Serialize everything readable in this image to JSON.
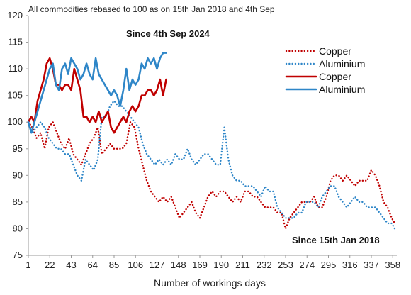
{
  "chart_data": {
    "type": "line",
    "subtitle": "All commodities rebased to 100 as on 15th Jan 2018 and 4th Sep",
    "xlabel": "Number of workings days",
    "ylabel": "",
    "ylim": [
      75,
      120
    ],
    "yticks": [
      75,
      80,
      85,
      90,
      95,
      100,
      105,
      110,
      115,
      120
    ],
    "xlim": [
      1,
      362
    ],
    "xticks": [
      1,
      22,
      43,
      64,
      85,
      106,
      127,
      148,
      169,
      190,
      211,
      232,
      253,
      274,
      295,
      316,
      337,
      358
    ],
    "grid": false,
    "legend_position": "top-right",
    "annotations": [
      {
        "text": "Since 4th Sep 2024",
        "x": 130,
        "y": 116
      },
      {
        "text": "Since 15th Jan 2018",
        "x": 316,
        "y": 78.5
      }
    ],
    "series": [
      {
        "name": "Copper",
        "period": "Since 15th Jan 2018",
        "color": "#c00000",
        "style": "dotted",
        "x": [
          1,
          5,
          9,
          13,
          17,
          21,
          25,
          29,
          33,
          37,
          41,
          45,
          49,
          53,
          57,
          61,
          65,
          69,
          73,
          77,
          81,
          85,
          89,
          93,
          97,
          101,
          105,
          109,
          113,
          117,
          121,
          125,
          129,
          133,
          137,
          141,
          145,
          149,
          153,
          157,
          161,
          165,
          169,
          173,
          177,
          181,
          185,
          189,
          193,
          197,
          201,
          205,
          209,
          213,
          217,
          221,
          225,
          229,
          233,
          237,
          241,
          245,
          249,
          253,
          257,
          261,
          265,
          269,
          273,
          277,
          281,
          285,
          289,
          293,
          297,
          301,
          305,
          309,
          313,
          317,
          321,
          325,
          329,
          333,
          337,
          341,
          345,
          349,
          353,
          357,
          360
        ],
        "values": [
          100,
          99,
          97,
          98,
          95,
          99,
          100,
          98,
          96,
          95,
          97,
          94,
          93,
          92,
          94,
          96,
          97,
          99,
          94,
          95,
          96,
          95,
          95,
          95,
          96,
          100,
          99,
          95,
          92,
          89,
          87,
          86,
          85,
          86,
          85,
          86,
          84,
          82,
          83,
          84,
          85,
          83,
          82,
          84,
          86,
          87,
          86,
          87,
          87,
          86,
          85,
          86,
          85,
          87,
          87,
          86,
          86,
          85,
          84,
          84,
          84,
          83,
          83,
          80,
          82,
          83,
          84,
          85,
          85,
          85,
          86,
          84,
          84,
          86,
          89,
          90,
          90,
          89,
          90,
          89,
          88,
          89,
          89,
          89,
          91,
          90,
          88,
          85,
          84,
          82,
          81
        ]
      },
      {
        "name": "Aluminium",
        "period": "Since 15th Jan 2018",
        "color": "#2e86c8",
        "style": "dotted",
        "x": [
          1,
          5,
          9,
          13,
          17,
          21,
          25,
          29,
          33,
          37,
          41,
          45,
          49,
          53,
          57,
          61,
          65,
          69,
          73,
          77,
          81,
          85,
          89,
          93,
          97,
          101,
          105,
          109,
          113,
          117,
          121,
          125,
          129,
          133,
          137,
          141,
          145,
          149,
          153,
          157,
          161,
          165,
          169,
          173,
          177,
          181,
          185,
          189,
          193,
          197,
          201,
          205,
          209,
          213,
          217,
          221,
          225,
          229,
          233,
          237,
          241,
          245,
          249,
          253,
          257,
          261,
          265,
          269,
          273,
          277,
          281,
          285,
          289,
          293,
          297,
          301,
          305,
          309,
          313,
          317,
          321,
          325,
          329,
          333,
          337,
          341,
          345,
          349,
          353,
          357,
          360
        ],
        "values": [
          100,
          98,
          99,
          100,
          99,
          97,
          96,
          95,
          95,
          94,
          94,
          92,
          90,
          89,
          93,
          92,
          91,
          93,
          101,
          101,
          103,
          104,
          103,
          103,
          102,
          101,
          100,
          99,
          96,
          94,
          93,
          92,
          93,
          92,
          93,
          92,
          94,
          93,
          93,
          95,
          93,
          92,
          93,
          94,
          94,
          93,
          92,
          92,
          99,
          93,
          90,
          89,
          89,
          88,
          88,
          88,
          87,
          86,
          88,
          87,
          87,
          84,
          83,
          82,
          82,
          82,
          83,
          83,
          85,
          85,
          85,
          84,
          86,
          87,
          88,
          88,
          86,
          85,
          84,
          85,
          86,
          85,
          85,
          84,
          84,
          84,
          83,
          82,
          81,
          81,
          80
        ]
      },
      {
        "name": "Copper",
        "period": "Since 4th Sep 2024",
        "color": "#c00000",
        "style": "solid",
        "x": [
          1,
          4,
          7,
          10,
          13,
          16,
          19,
          22,
          25,
          28,
          31,
          34,
          37,
          40,
          43,
          46,
          49,
          52,
          55,
          58,
          61,
          64,
          67,
          70,
          73,
          76,
          79,
          82,
          85,
          88,
          91,
          94,
          97,
          100,
          103,
          106,
          109,
          112,
          115,
          118,
          121,
          124,
          127,
          130,
          133,
          136
        ],
        "values": [
          100,
          101,
          100,
          104,
          106,
          108,
          111,
          112,
          110,
          107,
          107,
          106,
          107,
          107,
          106,
          110,
          108,
          106,
          101,
          101,
          100,
          101,
          100,
          102,
          100,
          101,
          102,
          99,
          98,
          99,
          100,
          101,
          100,
          102,
          103,
          102,
          103,
          105,
          105,
          106,
          106,
          105,
          106,
          108,
          105,
          108
        ]
      },
      {
        "name": "Aluminium",
        "period": "Since 4th Sep 2024",
        "color": "#2e86c8",
        "style": "solid",
        "x": [
          1,
          4,
          7,
          10,
          13,
          16,
          19,
          22,
          25,
          28,
          31,
          34,
          37,
          40,
          43,
          46,
          49,
          52,
          55,
          58,
          61,
          64,
          67,
          70,
          73,
          76,
          79,
          82,
          85,
          88,
          91,
          94,
          97,
          100,
          103,
          106,
          109,
          112,
          115,
          118,
          121,
          124,
          127,
          130,
          133,
          136
        ],
        "values": [
          100,
          98,
          100,
          102,
          104,
          106,
          108,
          110,
          111,
          107,
          106,
          110,
          111,
          109,
          112,
          111,
          110,
          108,
          109,
          111,
          109,
          108,
          112,
          109,
          108,
          107,
          106,
          105,
          106,
          105,
          103,
          106,
          110,
          106,
          108,
          107,
          108,
          111,
          110,
          112,
          111,
          112,
          110,
          112,
          113,
          113
        ]
      }
    ]
  }
}
